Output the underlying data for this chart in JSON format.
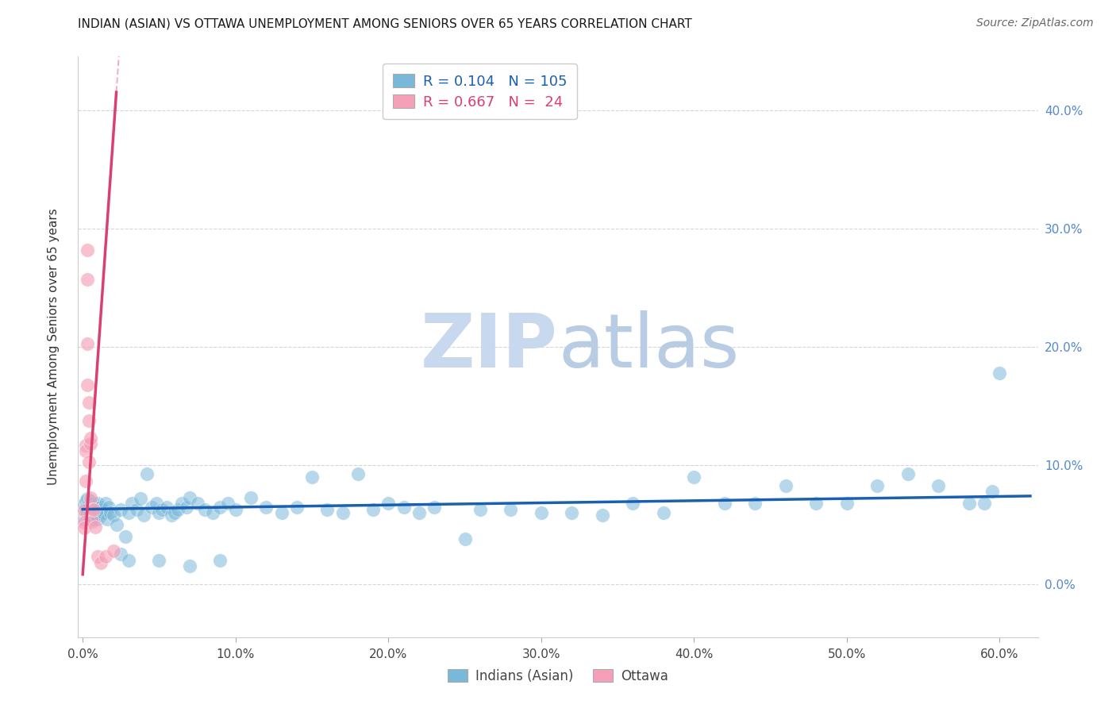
{
  "title": "INDIAN (ASIAN) VS OTTAWA UNEMPLOYMENT AMONG SENIORS OVER 65 YEARS CORRELATION CHART",
  "source": "Source: ZipAtlas.com",
  "ylabel": "Unemployment Among Seniors over 65 years",
  "blue_R": 0.104,
  "blue_N": 105,
  "pink_R": 0.667,
  "pink_N": 24,
  "blue_color": "#7ab8d9",
  "pink_color": "#f5a0b8",
  "blue_line_color": "#1a60b0",
  "pink_line_color": "#d94070",
  "xlim": [
    -0.003,
    0.625
  ],
  "ylim": [
    -0.045,
    0.445
  ],
  "yticks": [
    0.0,
    0.1,
    0.2,
    0.3,
    0.4
  ],
  "xticks": [
    0.0,
    0.1,
    0.2,
    0.3,
    0.4,
    0.5,
    0.6
  ],
  "watermark_color": "#ccddf0",
  "background_color": "#ffffff",
  "grid_color": "#cccccc",
  "blue_scatter_x": [
    0.001,
    0.001,
    0.002,
    0.002,
    0.002,
    0.003,
    0.003,
    0.003,
    0.003,
    0.004,
    0.004,
    0.004,
    0.005,
    0.005,
    0.005,
    0.005,
    0.006,
    0.006,
    0.006,
    0.007,
    0.007,
    0.007,
    0.008,
    0.008,
    0.008,
    0.009,
    0.009,
    0.01,
    0.01,
    0.01,
    0.011,
    0.012,
    0.012,
    0.013,
    0.014,
    0.015,
    0.016,
    0.017,
    0.018,
    0.02,
    0.022,
    0.025,
    0.028,
    0.03,
    0.032,
    0.035,
    0.038,
    0.04,
    0.042,
    0.045,
    0.048,
    0.05,
    0.052,
    0.055,
    0.058,
    0.06,
    0.062,
    0.065,
    0.068,
    0.07,
    0.075,
    0.08,
    0.085,
    0.09,
    0.095,
    0.1,
    0.11,
    0.12,
    0.13,
    0.14,
    0.15,
    0.16,
    0.17,
    0.18,
    0.19,
    0.2,
    0.21,
    0.22,
    0.23,
    0.25,
    0.26,
    0.28,
    0.3,
    0.32,
    0.34,
    0.36,
    0.38,
    0.4,
    0.42,
    0.44,
    0.46,
    0.48,
    0.5,
    0.52,
    0.54,
    0.56,
    0.58,
    0.59,
    0.595,
    0.6,
    0.025,
    0.03,
    0.05,
    0.07,
    0.09
  ],
  "blue_scatter_y": [
    0.067,
    0.055,
    0.06,
    0.07,
    0.065,
    0.058,
    0.063,
    0.072,
    0.06,
    0.065,
    0.058,
    0.068,
    0.062,
    0.055,
    0.06,
    0.07,
    0.063,
    0.058,
    0.065,
    0.06,
    0.055,
    0.068,
    0.063,
    0.058,
    0.06,
    0.065,
    0.058,
    0.068,
    0.062,
    0.055,
    0.06,
    0.065,
    0.058,
    0.063,
    0.06,
    0.068,
    0.055,
    0.065,
    0.06,
    0.058,
    0.05,
    0.063,
    0.04,
    0.06,
    0.068,
    0.063,
    0.072,
    0.058,
    0.093,
    0.065,
    0.068,
    0.06,
    0.063,
    0.065,
    0.058,
    0.06,
    0.063,
    0.068,
    0.065,
    0.073,
    0.068,
    0.063,
    0.06,
    0.065,
    0.068,
    0.063,
    0.073,
    0.065,
    0.06,
    0.065,
    0.09,
    0.063,
    0.06,
    0.093,
    0.063,
    0.068,
    0.065,
    0.06,
    0.065,
    0.038,
    0.063,
    0.063,
    0.06,
    0.06,
    0.058,
    0.068,
    0.06,
    0.09,
    0.068,
    0.068,
    0.083,
    0.068,
    0.068,
    0.083,
    0.093,
    0.083,
    0.068,
    0.068,
    0.078,
    0.178,
    0.025,
    0.02,
    0.02,
    0.015,
    0.02
  ],
  "pink_scatter_x": [
    0.001,
    0.001,
    0.001,
    0.002,
    0.002,
    0.002,
    0.003,
    0.003,
    0.003,
    0.003,
    0.004,
    0.004,
    0.004,
    0.005,
    0.005,
    0.005,
    0.006,
    0.006,
    0.007,
    0.008,
    0.01,
    0.012,
    0.015,
    0.02
  ],
  "pink_scatter_y": [
    0.062,
    0.052,
    0.047,
    0.117,
    0.112,
    0.087,
    0.168,
    0.203,
    0.257,
    0.282,
    0.138,
    0.153,
    0.103,
    0.118,
    0.123,
    0.073,
    0.063,
    0.053,
    0.063,
    0.048,
    0.023,
    0.018,
    0.023,
    0.028
  ],
  "pink_line_slope": 18.5,
  "pink_line_intercept": 0.008,
  "blue_line_slope": 0.018,
  "blue_line_intercept": 0.063
}
